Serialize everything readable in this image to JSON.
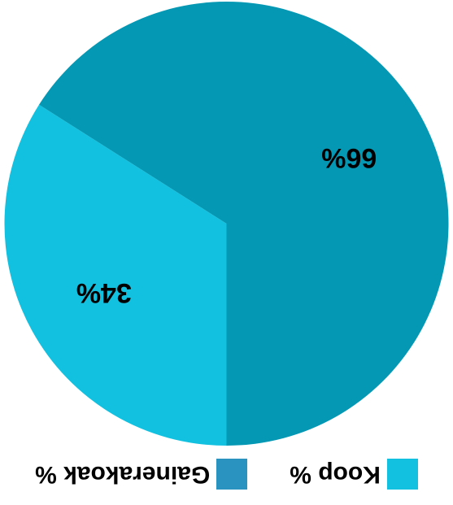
{
  "chart_data": {
    "type": "pie",
    "title": "",
    "slices": [
      {
        "label": "Koop %",
        "value": 34,
        "display": "34%",
        "color": "#12C1E0"
      },
      {
        "label": "Gainerakoak %",
        "value": 66,
        "display": "66%",
        "color": "#0498B4"
      }
    ],
    "legend_position": "bottom",
    "legend_swatch_colors": [
      "#12C1E0",
      "#2B93C0"
    ],
    "orientation": "rotated-180"
  }
}
